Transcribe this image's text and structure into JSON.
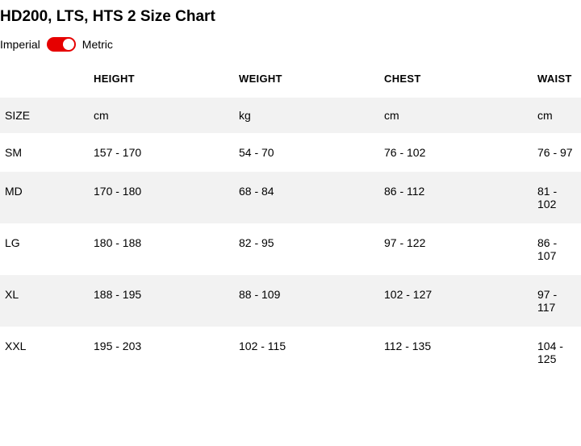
{
  "title": "HD200, LTS, HTS 2 Size Chart",
  "unitToggle": {
    "left": "Imperial",
    "right": "Metric",
    "active": "Metric",
    "trackColor": "#e60000",
    "knobColor": "#ffffff"
  },
  "table": {
    "type": "table",
    "background_color": "#ffffff",
    "alt_row_color": "#f2f2f2",
    "text_color": "#000000",
    "header_fontsize": 13,
    "body_fontsize": 14,
    "columns": [
      "",
      "HEIGHT",
      "WEIGHT",
      "CHEST",
      "WAIST"
    ],
    "unitsRow": [
      "SIZE",
      "cm",
      "kg",
      "cm",
      "cm"
    ],
    "rows": [
      [
        "SM",
        "157 - 170",
        "54 - 70",
        "76 - 102",
        "76 - 97"
      ],
      [
        "MD",
        "170 - 180",
        "68 - 84",
        "86 - 112",
        "81 - 102"
      ],
      [
        "LG",
        "180 - 188",
        "82 - 95",
        "97 - 122",
        "86 - 107"
      ],
      [
        "XL",
        "188 - 195",
        "88 - 109",
        "102 - 127",
        "97 - 117"
      ],
      [
        "XXL",
        "195 - 203",
        "102 - 115",
        "112 - 135",
        "104 - 125"
      ]
    ]
  }
}
